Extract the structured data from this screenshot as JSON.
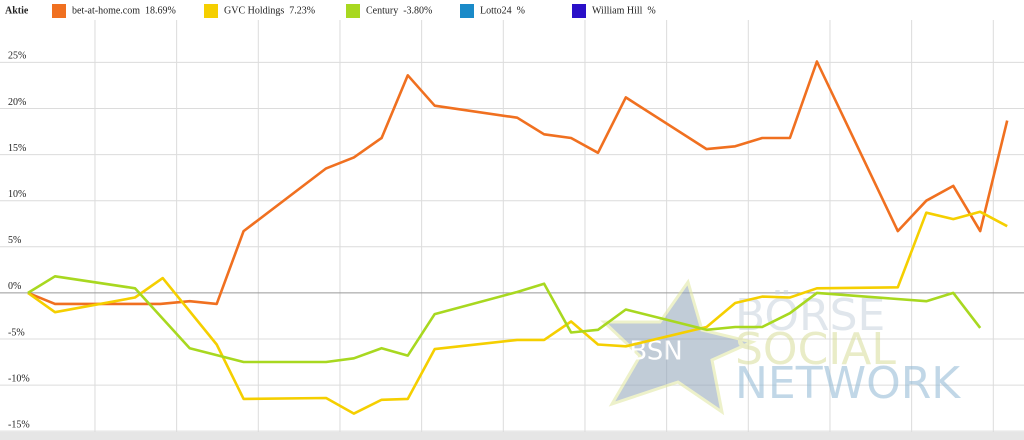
{
  "chart_data": {
    "type": "line",
    "legend_title": "Aktie",
    "xlim": [
      0,
      12
    ],
    "xticks": [
      0.82,
      1.82,
      2.82,
      3.82,
      4.82,
      5.82,
      6.82,
      7.82,
      8.82,
      9.82,
      10.82,
      11.82
    ],
    "ylim": [
      -15.2,
      29.6
    ],
    "yticks": [
      {
        "value": -15,
        "label": "-15%"
      },
      {
        "value": -10,
        "label": "-10%"
      },
      {
        "value": -5,
        "label": "-5%"
      },
      {
        "value": 0,
        "label": "0%"
      },
      {
        "value": 5,
        "label": "5%"
      },
      {
        "value": 10,
        "label": "10%"
      },
      {
        "value": 15,
        "label": "15%"
      },
      {
        "value": 20,
        "label": "20%"
      },
      {
        "value": 25,
        "label": "25%"
      }
    ],
    "grid": true,
    "series": [
      {
        "name": "bet-at-home.com  18.69%",
        "color": "#f07020",
        "x": [
          0,
          0.33,
          1.62,
          1.98,
          2.31,
          2.64,
          3.65,
          3.99,
          4.33,
          4.65,
          4.98,
          5.99,
          6.32,
          6.65,
          6.98,
          7.32,
          8.31,
          8.66,
          8.99,
          9.33,
          9.66,
          10.65,
          11.0,
          11.33,
          11.66,
          11.99
        ],
        "values": [
          0,
          -1.2,
          -1.2,
          -0.9,
          -1.2,
          6.7,
          13.5,
          14.7,
          16.8,
          23.6,
          20.3,
          19.0,
          17.2,
          16.8,
          15.2,
          21.2,
          15.6,
          15.9,
          16.8,
          16.8,
          25.1,
          6.7,
          10.0,
          11.6,
          6.7,
          18.69
        ]
      },
      {
        "name": "GVC Holdings  7.23%",
        "color": "#f5cf00",
        "x": [
          0,
          0.33,
          1.31,
          1.65,
          2.31,
          2.64,
          3.65,
          3.99,
          4.33,
          4.65,
          4.98,
          5.99,
          6.32,
          6.65,
          6.98,
          7.32,
          8.31,
          8.66,
          8.99,
          9.33,
          9.66,
          10.65,
          11.0,
          11.33,
          11.66,
          11.99
        ],
        "values": [
          0,
          -2.1,
          -0.5,
          1.6,
          -5.6,
          -11.5,
          -11.4,
          -13.1,
          -11.6,
          -11.5,
          -6.1,
          -5.1,
          -5.1,
          -3.1,
          -5.6,
          -5.8,
          -3.7,
          -1.1,
          -0.4,
          -0.5,
          0.5,
          0.6,
          8.7,
          8.0,
          8.8,
          7.23
        ]
      },
      {
        "name": "Century  -3.80%",
        "color": "#a8d820",
        "x": [
          0,
          0.33,
          1.31,
          1.98,
          2.64,
          3.65,
          3.99,
          4.33,
          4.65,
          4.98,
          5.99,
          6.32,
          6.65,
          6.98,
          7.32,
          8.31,
          8.66,
          8.99,
          9.33,
          9.66,
          11.0,
          11.33,
          11.66
        ],
        "values": [
          0,
          1.8,
          0.5,
          -6.0,
          -7.5,
          -7.5,
          -7.1,
          -6.0,
          -6.8,
          -2.3,
          0.1,
          1.0,
          -4.3,
          -4.0,
          -1.8,
          -4.0,
          -3.7,
          -3.7,
          -2.2,
          0.0,
          -0.9,
          0.0,
          -3.8
        ]
      },
      {
        "name": "Lotto24  %",
        "color": "#1a8ac8",
        "x": [
          0
        ],
        "values": [
          null
        ]
      },
      {
        "name": "William Hill  %",
        "color": "#2a10c8",
        "x": [
          0
        ],
        "values": [
          null
        ]
      }
    ]
  },
  "watermark": {
    "badge": "BSN",
    "lines": [
      "BÖRSE",
      "SOCIAL",
      "NETWORK"
    ]
  }
}
